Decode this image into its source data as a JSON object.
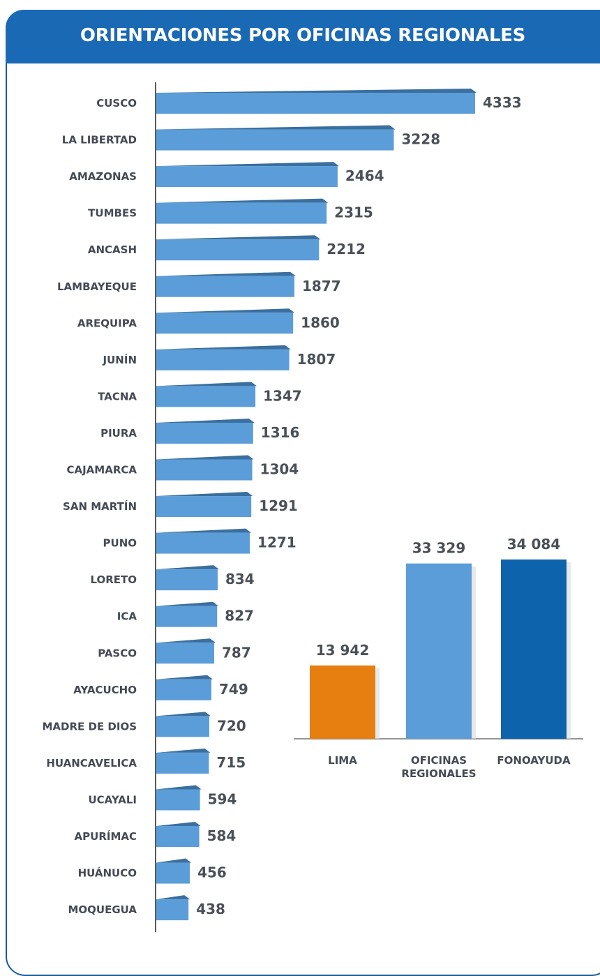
{
  "title": "ORIENTACIONES POR OFICINAS REGIONALES",
  "colors": {
    "header": "#1a69b4",
    "bar": "#5b9dd8",
    "bar_top": "#3a6f9f",
    "lima": "#e67e10",
    "oficinas": "#5b9dd8",
    "fonoayuda": "#0e63ad"
  },
  "chart_data": [
    {
      "type": "bar",
      "orientation": "horizontal",
      "categories": [
        "CUSCO",
        "LA LIBERTAD",
        "AMAZONAS",
        "TUMBES",
        "ANCASH",
        "LAMBAYEQUE",
        "AREQUIPA",
        "JUNÍN",
        "TACNA",
        "PIURA",
        "CAJAMARCA",
        "SAN MARTÍN",
        "PUNO",
        "LORETO",
        "ICA",
        "PASCO",
        "AYACUCHO",
        "MADRE DE DIOS",
        "HUANCAVELICA",
        "UCAYALI",
        "APURÍMAC",
        "HUÁNUCO",
        "MOQUEGUA"
      ],
      "values": [
        4333,
        3228,
        2464,
        2315,
        2212,
        1877,
        1860,
        1807,
        1347,
        1316,
        1304,
        1291,
        1271,
        834,
        827,
        787,
        749,
        720,
        715,
        594,
        584,
        456,
        438
      ],
      "value_labels": [
        "4333",
        "3228",
        "2464",
        "2315",
        "2212",
        "1877",
        "1860",
        "1807",
        "1347",
        "1316",
        "1304",
        "1291",
        "1271",
        "834",
        "827",
        "787",
        "749",
        "720",
        "715",
        "594",
        "584",
        "456",
        "438"
      ],
      "xlim": [
        0,
        4333
      ],
      "grid": false
    },
    {
      "type": "bar",
      "orientation": "vertical",
      "categories": [
        "LIMA",
        "OFICINAS REGIONALES",
        "FONOAYUDA"
      ],
      "category_lines": [
        [
          "LIMA"
        ],
        [
          "OFICINAS",
          "REGIONALES"
        ],
        [
          "FONOAYUDA"
        ]
      ],
      "values": [
        13942,
        33329,
        34084
      ],
      "value_labels": [
        "13 942",
        "33 329",
        "34 084"
      ],
      "ylim": [
        0,
        34084
      ],
      "grid": false
    }
  ]
}
